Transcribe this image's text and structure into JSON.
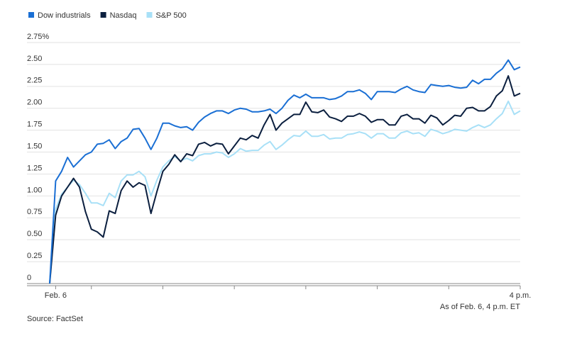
{
  "chart_data": {
    "type": "line",
    "x": [
      -5,
      0,
      5,
      10,
      15,
      20,
      25,
      30,
      35,
      40,
      45,
      50,
      55,
      60,
      65,
      70,
      75,
      80,
      85,
      90,
      95,
      100,
      105,
      110,
      115,
      120,
      125,
      130,
      135,
      140,
      145,
      150,
      155,
      160,
      165,
      170,
      175,
      180,
      185,
      190,
      195,
      200,
      205,
      210,
      215,
      220,
      225,
      230,
      235,
      240,
      245,
      250,
      255,
      260,
      265,
      270,
      275,
      280,
      285,
      290,
      295,
      300,
      305,
      310,
      315,
      320,
      325,
      330,
      335,
      340,
      345,
      350,
      355,
      360,
      365,
      370,
      375,
      380,
      385,
      390
    ],
    "series": [
      {
        "name": "Dow industrials",
        "color": "#1a6fd4",
        "values": [
          0,
          1.17,
          1.28,
          1.44,
          1.33,
          1.4,
          1.47,
          1.5,
          1.59,
          1.6,
          1.64,
          1.54,
          1.62,
          1.66,
          1.76,
          1.77,
          1.66,
          1.53,
          1.66,
          1.83,
          1.83,
          1.8,
          1.78,
          1.79,
          1.75,
          1.84,
          1.9,
          1.94,
          1.97,
          1.97,
          1.94,
          1.98,
          2.0,
          1.99,
          1.96,
          1.96,
          1.97,
          1.99,
          1.94,
          2.0,
          2.09,
          2.15,
          2.12,
          2.16,
          2.12,
          2.12,
          2.12,
          2.1,
          2.11,
          2.14,
          2.19,
          2.19,
          2.21,
          2.17,
          2.1,
          2.19,
          2.19,
          2.19,
          2.18,
          2.22,
          2.25,
          2.21,
          2.19,
          2.18,
          2.27,
          2.26,
          2.25,
          2.26,
          2.24,
          2.23,
          2.24,
          2.32,
          2.28,
          2.33,
          2.33,
          2.4,
          2.45,
          2.55,
          2.44,
          2.47
        ]
      },
      {
        "name": "Nasdaq",
        "color": "#0b1f3f",
        "values": [
          0,
          0.78,
          1.0,
          1.1,
          1.2,
          1.1,
          0.82,
          0.62,
          0.59,
          0.53,
          0.83,
          0.8,
          1.06,
          1.17,
          1.1,
          1.15,
          1.12,
          0.8,
          1.05,
          1.28,
          1.36,
          1.47,
          1.39,
          1.48,
          1.46,
          1.59,
          1.61,
          1.57,
          1.6,
          1.59,
          1.48,
          1.57,
          1.66,
          1.64,
          1.69,
          1.66,
          1.81,
          1.93,
          1.75,
          1.83,
          1.88,
          1.93,
          1.93,
          2.07,
          1.96,
          1.95,
          1.98,
          1.9,
          1.88,
          1.85,
          1.91,
          1.91,
          1.94,
          1.91,
          1.84,
          1.87,
          1.87,
          1.81,
          1.81,
          1.91,
          1.93,
          1.88,
          1.88,
          1.83,
          1.92,
          1.89,
          1.81,
          1.86,
          1.92,
          1.91,
          2.0,
          2.01,
          1.97,
          1.97,
          2.02,
          2.14,
          2.2,
          2.37,
          2.14,
          2.17
        ]
      },
      {
        "name": "S&P 500",
        "color": "#a8e0f7",
        "values": [
          0,
          0.85,
          1.02,
          1.1,
          1.18,
          1.13,
          1.03,
          0.92,
          0.92,
          0.89,
          1.03,
          0.98,
          1.17,
          1.24,
          1.24,
          1.28,
          1.22,
          1.0,
          1.18,
          1.33,
          1.4,
          1.45,
          1.4,
          1.43,
          1.4,
          1.46,
          1.48,
          1.48,
          1.5,
          1.49,
          1.44,
          1.48,
          1.54,
          1.51,
          1.52,
          1.52,
          1.58,
          1.62,
          1.53,
          1.58,
          1.64,
          1.69,
          1.68,
          1.74,
          1.68,
          1.68,
          1.7,
          1.65,
          1.66,
          1.66,
          1.7,
          1.71,
          1.73,
          1.71,
          1.66,
          1.71,
          1.71,
          1.66,
          1.66,
          1.72,
          1.74,
          1.71,
          1.72,
          1.68,
          1.76,
          1.74,
          1.71,
          1.73,
          1.76,
          1.75,
          1.74,
          1.78,
          1.81,
          1.78,
          1.81,
          1.88,
          1.94,
          2.08,
          1.93,
          1.97
        ]
      }
    ],
    "xlim": [
      -5,
      390
    ],
    "xticks": [
      {
        "value": 0,
        "label": "Feb. 6"
      },
      {
        "value": 30,
        "label": null
      },
      {
        "value": 90,
        "label": null
      },
      {
        "value": 150,
        "label": null
      },
      {
        "value": 210,
        "label": null
      },
      {
        "value": 270,
        "label": null
      },
      {
        "value": 330,
        "label": null
      },
      {
        "value": 390,
        "label": "4 p.m."
      }
    ],
    "ylim": [
      0,
      2.75
    ],
    "yticks": [
      0,
      0.25,
      {
        "value": 0.5,
        "label": "0.50"
      },
      0.75,
      {
        "value": 1,
        "label": "1.00"
      },
      1.25,
      {
        "value": 1.5,
        "label": "1.50"
      },
      1.75,
      {
        "value": 2,
        "label": "2.00"
      },
      2.25,
      {
        "value": 2.5,
        "label": "2.50"
      },
      {
        "value": 2.75,
        "label": "2.75%"
      }
    ],
    "grid": true,
    "note": "As of Feb. 6, 4 p.m. ET",
    "source": "Source: FactSet"
  }
}
